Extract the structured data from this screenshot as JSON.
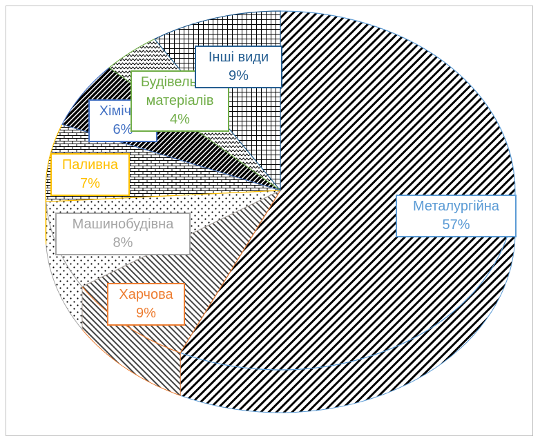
{
  "chart_data": {
    "type": "pie",
    "title": "",
    "slices": [
      {
        "label": "Металургійна",
        "value": 57,
        "percent_text": "57%",
        "color": "#5b9bd5",
        "pattern": "diag-right"
      },
      {
        "label": "Харчова",
        "value": 9,
        "percent_text": "9%",
        "color": "#ed7d31",
        "pattern": "diag-left"
      },
      {
        "label": "Машинобудівна",
        "value": 8,
        "percent_text": "8%",
        "color": "#a5a5a5",
        "pattern": "dots"
      },
      {
        "label": "Паливна",
        "value": 7,
        "percent_text": "7%",
        "color": "#ffc000",
        "pattern": "bricks"
      },
      {
        "label": "Хімічна",
        "value": 6,
        "percent_text": "6%",
        "color": "#4472c4",
        "pattern": "dark-diag"
      },
      {
        "label": "Будівельних матеріалів",
        "label_line1": "Будівельних",
        "label_line2": "матеріалів",
        "value": 4,
        "percent_text": "4%",
        "color": "#70ad47",
        "pattern": "zigzag"
      },
      {
        "label": "Інші види",
        "value": 9,
        "percent_text": "9%",
        "color": "#255e91",
        "pattern": "grid"
      }
    ]
  }
}
